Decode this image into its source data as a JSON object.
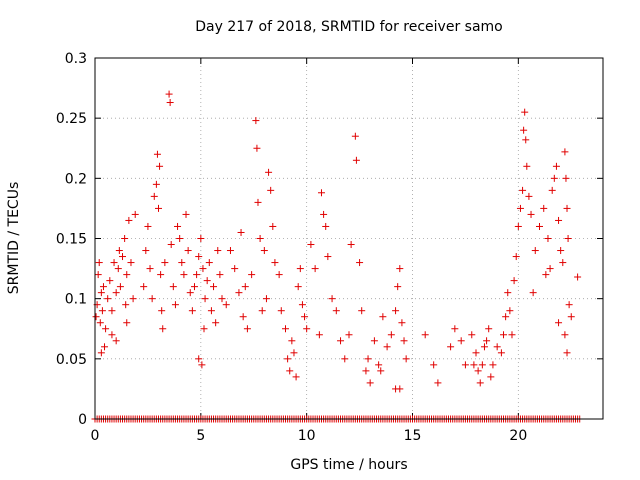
{
  "chart_data": {
    "type": "scatter",
    "title": "Day 217 of 2018, SRMTID for receiver samo",
    "xlabel": "GPS time / hours",
    "ylabel": "SRMTID / TECUs",
    "xlim": [
      0,
      24
    ],
    "ylim": [
      0,
      0.3
    ],
    "xticks": [
      0,
      5,
      10,
      15,
      20
    ],
    "xtick_labels": [
      "0",
      "5",
      "10",
      "15",
      "20"
    ],
    "yticks": [
      0,
      0.05,
      0.1,
      0.15,
      0.2,
      0.25,
      0.3
    ],
    "ytick_labels": [
      "0",
      "0.05",
      "0.1",
      "0.15",
      "0.2",
      "0.25",
      "0.3"
    ],
    "grid": true,
    "marker": "+",
    "color": "#e00000",
    "series": [
      {
        "name": "SRMTID",
        "points": [
          [
            0.05,
            0.085
          ],
          [
            0.1,
            0.095
          ],
          [
            0.15,
            0.12
          ],
          [
            0.2,
            0.13
          ],
          [
            0.25,
            0.08
          ],
          [
            0.3,
            0.105
          ],
          [
            0.35,
            0.09
          ],
          [
            0.4,
            0.11
          ],
          [
            0.45,
            0.06
          ],
          [
            0.5,
            0.075
          ],
          [
            0.6,
            0.1
          ],
          [
            0.7,
            0.115
          ],
          [
            0.8,
            0.09
          ],
          [
            0.9,
            0.13
          ],
          [
            1.0,
            0.105
          ],
          [
            1.1,
            0.125
          ],
          [
            1.15,
            0.14
          ],
          [
            1.2,
            0.11
          ],
          [
            1.3,
            0.135
          ],
          [
            1.4,
            0.15
          ],
          [
            1.45,
            0.095
          ],
          [
            1.5,
            0.12
          ],
          [
            1.6,
            0.165
          ],
          [
            1.7,
            0.13
          ],
          [
            1.8,
            0.1
          ],
          [
            1.5,
            0.08
          ],
          [
            1.0,
            0.065
          ],
          [
            0.8,
            0.07
          ],
          [
            0.3,
            0.055
          ],
          [
            1.9,
            0.17
          ],
          [
            2.3,
            0.11
          ],
          [
            2.4,
            0.14
          ],
          [
            2.5,
            0.16
          ],
          [
            2.6,
            0.125
          ],
          [
            2.7,
            0.1
          ],
          [
            2.8,
            0.185
          ],
          [
            2.9,
            0.195
          ],
          [
            3.0,
            0.175
          ],
          [
            3.05,
            0.21
          ],
          [
            3.1,
            0.12
          ],
          [
            3.15,
            0.09
          ],
          [
            3.2,
            0.075
          ],
          [
            2.95,
            0.22
          ],
          [
            3.3,
            0.13
          ],
          [
            3.5,
            0.27
          ],
          [
            3.55,
            0.263
          ],
          [
            3.6,
            0.145
          ],
          [
            3.7,
            0.11
          ],
          [
            3.8,
            0.095
          ],
          [
            3.9,
            0.16
          ],
          [
            4.0,
            0.15
          ],
          [
            4.1,
            0.13
          ],
          [
            4.2,
            0.12
          ],
          [
            4.3,
            0.17
          ],
          [
            4.4,
            0.14
          ],
          [
            4.5,
            0.105
          ],
          [
            4.6,
            0.09
          ],
          [
            4.7,
            0.11
          ],
          [
            4.8,
            0.12
          ],
          [
            4.9,
            0.135
          ],
          [
            5.0,
            0.15
          ],
          [
            5.1,
            0.125
          ],
          [
            5.2,
            0.1
          ],
          [
            5.3,
            0.115
          ],
          [
            5.4,
            0.13
          ],
          [
            5.5,
            0.09
          ],
          [
            5.6,
            0.11
          ],
          [
            5.7,
            0.08
          ],
          [
            5.8,
            0.14
          ],
          [
            4.9,
            0.05
          ],
          [
            5.05,
            0.045
          ],
          [
            5.15,
            0.075
          ],
          [
            5.9,
            0.12
          ],
          [
            6.0,
            0.1
          ],
          [
            6.2,
            0.095
          ],
          [
            6.4,
            0.14
          ],
          [
            6.6,
            0.125
          ],
          [
            6.8,
            0.105
          ],
          [
            6.9,
            0.155
          ],
          [
            7.0,
            0.085
          ],
          [
            7.1,
            0.11
          ],
          [
            7.2,
            0.075
          ],
          [
            7.4,
            0.12
          ],
          [
            7.6,
            0.248
          ],
          [
            7.65,
            0.225
          ],
          [
            7.7,
            0.18
          ],
          [
            7.8,
            0.15
          ],
          [
            7.9,
            0.09
          ],
          [
            8.0,
            0.14
          ],
          [
            8.1,
            0.1
          ],
          [
            8.2,
            0.205
          ],
          [
            8.3,
            0.19
          ],
          [
            8.4,
            0.16
          ],
          [
            8.5,
            0.13
          ],
          [
            8.7,
            0.12
          ],
          [
            8.8,
            0.09
          ],
          [
            9.0,
            0.075
          ],
          [
            9.1,
            0.05
          ],
          [
            9.2,
            0.04
          ],
          [
            9.3,
            0.065
          ],
          [
            9.4,
            0.055
          ],
          [
            9.5,
            0.035
          ],
          [
            9.6,
            0.11
          ],
          [
            9.7,
            0.125
          ],
          [
            9.8,
            0.095
          ],
          [
            9.9,
            0.085
          ],
          [
            10.0,
            0.075
          ],
          [
            10.2,
            0.145
          ],
          [
            10.4,
            0.125
          ],
          [
            10.6,
            0.07
          ],
          [
            10.7,
            0.188
          ],
          [
            10.8,
            0.17
          ],
          [
            10.9,
            0.16
          ],
          [
            11.0,
            0.135
          ],
          [
            11.2,
            0.1
          ],
          [
            11.4,
            0.09
          ],
          [
            11.6,
            0.065
          ],
          [
            11.8,
            0.05
          ],
          [
            12.0,
            0.07
          ],
          [
            12.1,
            0.145
          ],
          [
            12.3,
            0.235
          ],
          [
            12.35,
            0.215
          ],
          [
            12.5,
            0.13
          ],
          [
            12.6,
            0.09
          ],
          [
            12.8,
            0.04
          ],
          [
            12.9,
            0.05
          ],
          [
            13.0,
            0.03
          ],
          [
            13.2,
            0.065
          ],
          [
            13.4,
            0.045
          ],
          [
            13.6,
            0.085
          ],
          [
            13.8,
            0.06
          ],
          [
            14.0,
            0.07
          ],
          [
            14.2,
            0.09
          ],
          [
            14.3,
            0.11
          ],
          [
            14.4,
            0.125
          ],
          [
            14.5,
            0.08
          ],
          [
            14.6,
            0.065
          ],
          [
            14.7,
            0.05
          ],
          [
            14.2,
            0.025
          ],
          [
            13.5,
            0.04
          ],
          [
            14.4,
            0.025
          ],
          [
            15.6,
            0.07
          ],
          [
            16.0,
            0.045
          ],
          [
            16.2,
            0.03
          ],
          [
            16.8,
            0.06
          ],
          [
            17.0,
            0.075
          ],
          [
            17.3,
            0.065
          ],
          [
            17.5,
            0.045
          ],
          [
            17.8,
            0.07
          ],
          [
            18.0,
            0.055
          ],
          [
            18.1,
            0.04
          ],
          [
            18.2,
            0.03
          ],
          [
            18.3,
            0.045
          ],
          [
            18.4,
            0.06
          ],
          [
            18.5,
            0.065
          ],
          [
            18.6,
            0.075
          ],
          [
            18.8,
            0.045
          ],
          [
            19.0,
            0.06
          ],
          [
            19.2,
            0.055
          ],
          [
            19.4,
            0.085
          ],
          [
            19.5,
            0.105
          ],
          [
            19.6,
            0.09
          ],
          [
            19.7,
            0.07
          ],
          [
            19.8,
            0.115
          ],
          [
            19.9,
            0.135
          ],
          [
            20.0,
            0.16
          ],
          [
            20.1,
            0.175
          ],
          [
            20.2,
            0.19
          ],
          [
            20.25,
            0.24
          ],
          [
            20.3,
            0.255
          ],
          [
            20.35,
            0.232
          ],
          [
            20.4,
            0.21
          ],
          [
            20.5,
            0.185
          ],
          [
            20.6,
            0.17
          ],
          [
            20.8,
            0.14
          ],
          [
            21.0,
            0.16
          ],
          [
            21.2,
            0.175
          ],
          [
            21.4,
            0.15
          ],
          [
            21.5,
            0.125
          ],
          [
            21.6,
            0.19
          ],
          [
            21.7,
            0.2
          ],
          [
            21.8,
            0.21
          ],
          [
            21.9,
            0.165
          ],
          [
            22.0,
            0.14
          ],
          [
            22.1,
            0.13
          ],
          [
            22.2,
            0.222
          ],
          [
            22.25,
            0.2
          ],
          [
            22.3,
            0.175
          ],
          [
            22.35,
            0.15
          ],
          [
            22.4,
            0.095
          ],
          [
            22.5,
            0.085
          ],
          [
            22.2,
            0.07
          ],
          [
            22.3,
            0.055
          ],
          [
            21.9,
            0.08
          ],
          [
            22.8,
            0.118
          ],
          [
            21.3,
            0.12
          ],
          [
            20.7,
            0.105
          ],
          [
            19.3,
            0.07
          ],
          [
            18.7,
            0.035
          ],
          [
            17.9,
            0.045
          ]
        ]
      }
    ],
    "zero_baseline": {
      "x_start": 0,
      "x_end": 22.9,
      "y": 0
    }
  }
}
